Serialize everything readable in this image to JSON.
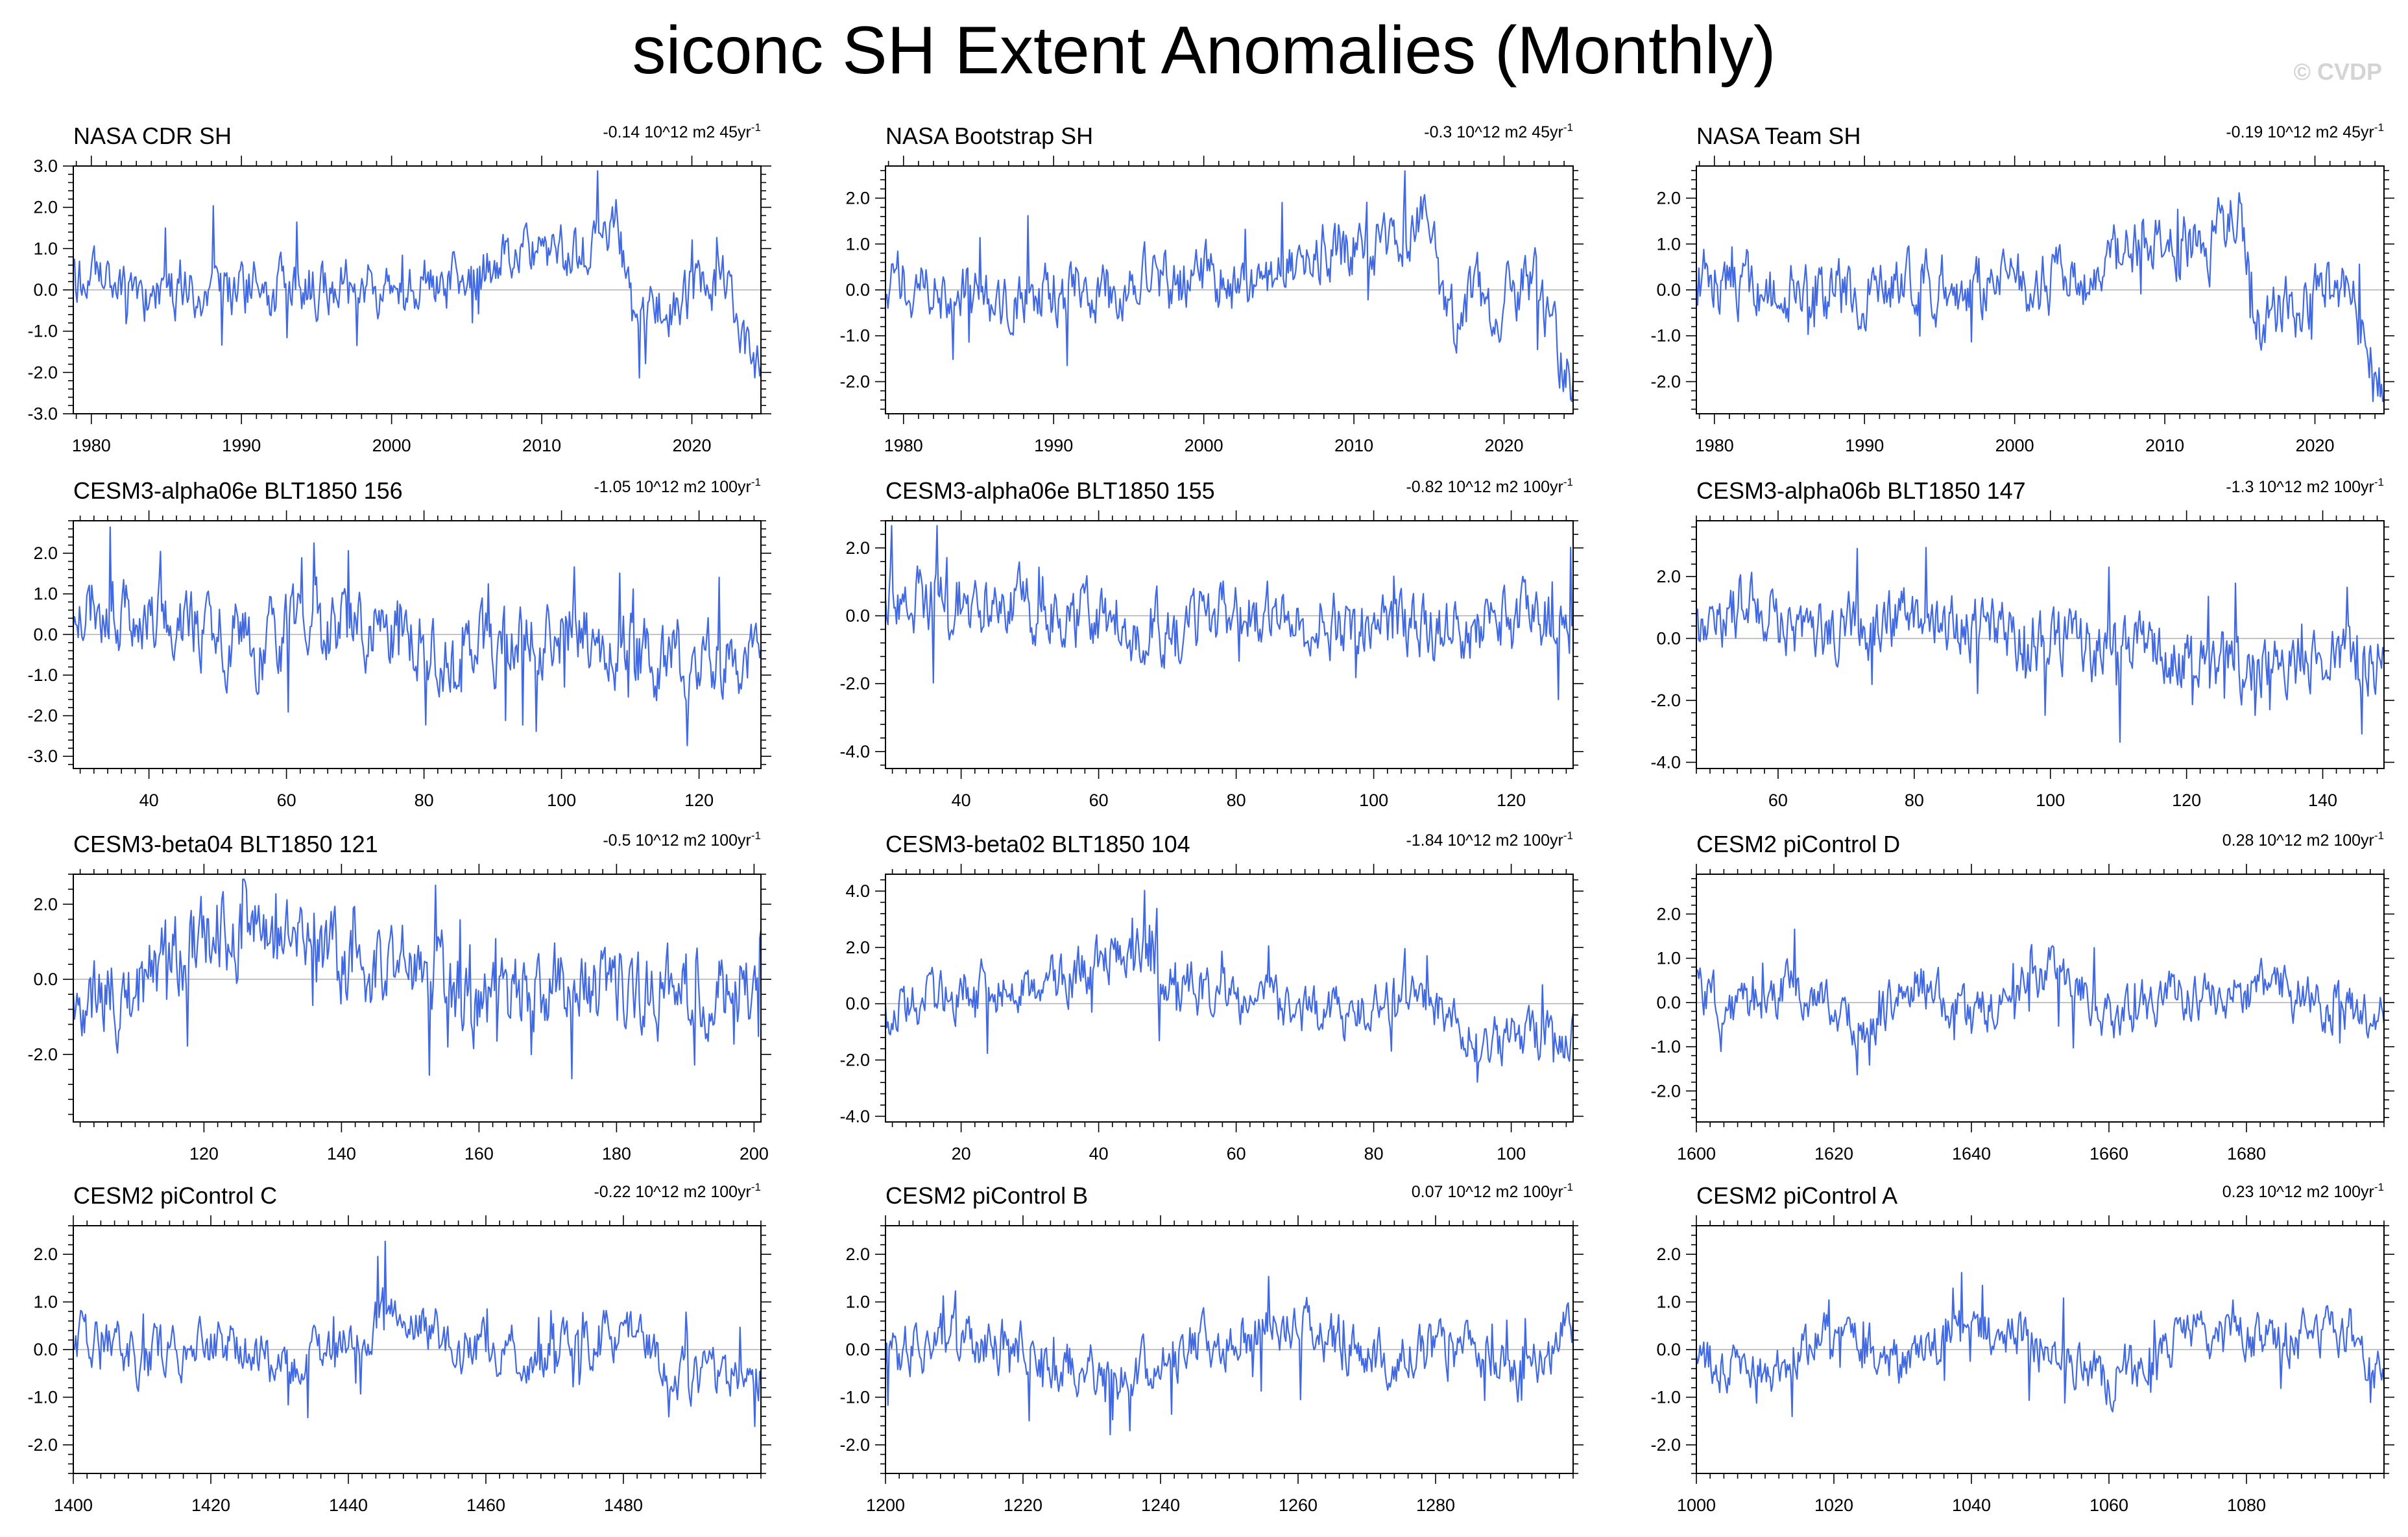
{
  "title": "siconc SH Extent Anomalies (Monthly)",
  "watermark": "© CVDP",
  "colors": {
    "line": "#4169e1",
    "zero_line": "#b0b0b0",
    "frame": "#000000"
  },
  "chart_data": [
    {
      "type": "line",
      "title": "NASA CDR SH",
      "trend_value": "-0.14",
      "trend_units": "10^12 m2 45yr",
      "trend_sup": "-1",
      "xlim": [
        1978.8,
        2024.6
      ],
      "xticks": [
        1980,
        1990,
        2000,
        2010,
        2020
      ],
      "ylim": [
        -3,
        3
      ],
      "yticks": [
        -3,
        -2,
        -1,
        0,
        1,
        2,
        3
      ],
      "amplitude": 0.55,
      "seed": 11,
      "anchors": [
        [
          1978.8,
          0.1
        ],
        [
          1985,
          -0.1
        ],
        [
          1995,
          0.1
        ],
        [
          2005,
          0.2
        ],
        [
          2008,
          0.9
        ],
        [
          2013,
          0.9
        ],
        [
          2015,
          1.8
        ],
        [
          2016,
          -0.7
        ],
        [
          2019,
          -0.3
        ],
        [
          2022,
          0.2
        ],
        [
          2023.5,
          -1.2
        ],
        [
          2024.6,
          -2.2
        ]
      ]
    },
    {
      "type": "line",
      "title": "NASA Bootstrap SH",
      "trend_value": "-0.3",
      "trend_units": "10^12 m2 45yr",
      "trend_sup": "-1",
      "xlim": [
        1978.8,
        2024.6
      ],
      "xticks": [
        1980,
        1990,
        2000,
        2010,
        2020
      ],
      "ylim": [
        -2.7,
        2.7
      ],
      "yticks": [
        -2,
        -1,
        0,
        1,
        2
      ],
      "amplitude": 0.55,
      "seed": 12,
      "anchors": [
        [
          1978.8,
          0.2
        ],
        [
          1985,
          -0.1
        ],
        [
          1995,
          0.1
        ],
        [
          2005,
          0.2
        ],
        [
          2008,
          0.9
        ],
        [
          2013,
          1.0
        ],
        [
          2015,
          1.8
        ],
        [
          2016,
          -0.7
        ],
        [
          2019,
          -0.3
        ],
        [
          2022,
          0.2
        ],
        [
          2023.5,
          -1.2
        ],
        [
          2024.6,
          -2.2
        ]
      ]
    },
    {
      "type": "line",
      "title": "NASA Team SH",
      "trend_value": "-0.19",
      "trend_units": "10^12 m2 45yr",
      "trend_sup": "-1",
      "xlim": [
        1978.8,
        2024.6
      ],
      "xticks": [
        1980,
        1990,
        2000,
        2010,
        2020
      ],
      "ylim": [
        -2.7,
        2.7
      ],
      "yticks": [
        -2,
        -1,
        0,
        1,
        2
      ],
      "amplitude": 0.55,
      "seed": 13,
      "anchors": [
        [
          1978.8,
          0.3
        ],
        [
          1985,
          -0.1
        ],
        [
          1995,
          0.1
        ],
        [
          2005,
          0.2
        ],
        [
          2008,
          1.0
        ],
        [
          2013,
          1.0
        ],
        [
          2015,
          1.8
        ],
        [
          2016,
          -0.7
        ],
        [
          2019,
          -0.4
        ],
        [
          2022,
          0.2
        ],
        [
          2023.5,
          -1.2
        ],
        [
          2024.6,
          -2.2
        ]
      ]
    },
    {
      "type": "line",
      "title": "CESM3-alpha06e BLT1850 156",
      "trend_value": "-1.05",
      "trend_units": "10^12 m2 100yr",
      "trend_sup": "-1",
      "xlim": [
        29,
        129
      ],
      "xticks": [
        40,
        60,
        80,
        100,
        120
      ],
      "ylim": [
        -3.3,
        2.8
      ],
      "yticks": [
        -3,
        -2,
        -1,
        0,
        1,
        2
      ],
      "amplitude": 0.75,
      "seed": 21,
      "anchors": [
        [
          29,
          0.8
        ],
        [
          40,
          0.5
        ],
        [
          55,
          -0.3
        ],
        [
          70,
          0.2
        ],
        [
          85,
          -0.5
        ],
        [
          100,
          0.2
        ],
        [
          115,
          -0.6
        ],
        [
          129,
          -0.4
        ]
      ]
    },
    {
      "type": "line",
      "title": "CESM3-alpha06e BLT1850 155",
      "trend_value": "-0.82",
      "trend_units": "10^12 m2 100yr",
      "trend_sup": "-1",
      "xlim": [
        29,
        129
      ],
      "xticks": [
        40,
        60,
        80,
        100,
        120
      ],
      "ylim": [
        -4.5,
        2.8
      ],
      "yticks": [
        -4,
        -2,
        0,
        2
      ],
      "amplitude": 0.8,
      "seed": 22,
      "anchors": [
        [
          29,
          0.8
        ],
        [
          45,
          0.3
        ],
        [
          65,
          -0.4
        ],
        [
          80,
          0.0
        ],
        [
          100,
          -0.3
        ],
        [
          115,
          -0.5
        ],
        [
          129,
          0.1
        ]
      ]
    },
    {
      "type": "line",
      "title": "CESM3-alpha06b BLT1850 147",
      "trend_value": "-1.3",
      "trend_units": "10^12 m2 100yr",
      "trend_sup": "-1",
      "xlim": [
        48,
        149
      ],
      "xticks": [
        60,
        80,
        100,
        120,
        140
      ],
      "ylim": [
        -4.2,
        3.8
      ],
      "yticks": [
        -4,
        -2,
        0,
        2
      ],
      "amplitude": 0.85,
      "seed": 23,
      "anchors": [
        [
          48,
          0.5
        ],
        [
          55,
          1.2
        ],
        [
          65,
          0.3
        ],
        [
          80,
          0.5
        ],
        [
          95,
          0.0
        ],
        [
          110,
          -0.4
        ],
        [
          125,
          -0.8
        ],
        [
          149,
          -0.7
        ]
      ]
    },
    {
      "type": "line",
      "title": "CESM3-beta04 BLT1850 121",
      "trend_value": "-0.5",
      "trend_units": "10^12 m2 100yr",
      "trend_sup": "-1",
      "xlim": [
        101,
        201
      ],
      "xticks": [
        120,
        140,
        160,
        180,
        200
      ],
      "ylim": [
        -3.8,
        2.8
      ],
      "yticks": [
        -2,
        0,
        2
      ],
      "amplitude": 0.9,
      "seed": 31,
      "anchors": [
        [
          101,
          -0.3
        ],
        [
          110,
          -0.3
        ],
        [
          120,
          1.2
        ],
        [
          130,
          1.2
        ],
        [
          140,
          0.3
        ],
        [
          150,
          0.6
        ],
        [
          160,
          -0.8
        ],
        [
          170,
          0.0
        ],
        [
          185,
          -0.5
        ],
        [
          201,
          0.0
        ]
      ]
    },
    {
      "type": "line",
      "title": "CESM3-beta02 BLT1850 104",
      "trend_value": "-1.84",
      "trend_units": "10^12 m2 100yr",
      "trend_sup": "-1",
      "xlim": [
        9,
        109
      ],
      "xticks": [
        20,
        40,
        60,
        80,
        100
      ],
      "ylim": [
        -4.2,
        4.6
      ],
      "yticks": [
        -4,
        -2,
        0,
        2,
        4
      ],
      "amplitude": 0.75,
      "seed": 32,
      "anchors": [
        [
          9,
          -0.3
        ],
        [
          20,
          0.5
        ],
        [
          35,
          0.8
        ],
        [
          44,
          2.0
        ],
        [
          50,
          1.0
        ],
        [
          60,
          0.0
        ],
        [
          75,
          -0.5
        ],
        [
          88,
          0.1
        ],
        [
          97,
          -1.5
        ],
        [
          102,
          -1.0
        ],
        [
          109,
          -1.2
        ]
      ]
    },
    {
      "type": "line",
      "title": "CESM2 piControl D",
      "trend_value": "0.28",
      "trend_units": "10^12 m2 100yr",
      "trend_sup": "-1",
      "xlim": [
        1600,
        1700
      ],
      "xticks": [
        1600,
        1620,
        1640,
        1660,
        1680
      ],
      "ylim": [
        -2.7,
        2.9
      ],
      "yticks": [
        -2,
        -1,
        0,
        1,
        2
      ],
      "amplitude": 0.45,
      "seed": 41,
      "anchors": [
        [
          1600,
          0.4
        ],
        [
          1605,
          -0.3
        ],
        [
          1615,
          0.4
        ],
        [
          1625,
          -0.5
        ],
        [
          1632,
          0.5
        ],
        [
          1640,
          -0.4
        ],
        [
          1652,
          0.9
        ],
        [
          1660,
          -0.3
        ],
        [
          1670,
          0.1
        ],
        [
          1685,
          0.3
        ],
        [
          1700,
          -0.4
        ]
      ]
    },
    {
      "type": "line",
      "title": "CESM2 piControl C",
      "trend_value": "-0.22",
      "trend_units": "10^12 m2 100yr",
      "trend_sup": "-1",
      "xlim": [
        1400,
        1500
      ],
      "xticks": [
        1400,
        1420,
        1440,
        1460,
        1480
      ],
      "ylim": [
        -2.6,
        2.6
      ],
      "yticks": [
        -2,
        -1,
        0,
        1,
        2
      ],
      "amplitude": 0.42,
      "seed": 51,
      "anchors": [
        [
          1400,
          0.3
        ],
        [
          1410,
          -0.2
        ],
        [
          1420,
          0.2
        ],
        [
          1430,
          -0.3
        ],
        [
          1440,
          0.1
        ],
        [
          1447,
          0.9
        ],
        [
          1455,
          0.1
        ],
        [
          1470,
          -0.1
        ],
        [
          1481,
          0.5
        ],
        [
          1487,
          -0.6
        ],
        [
          1500,
          -0.5
        ]
      ]
    },
    {
      "type": "line",
      "title": "CESM2 piControl B",
      "trend_value": "0.07",
      "trend_units": "10^12 m2 100yr",
      "trend_sup": "-1",
      "xlim": [
        1200,
        1300
      ],
      "xticks": [
        1200,
        1220,
        1240,
        1260,
        1280
      ],
      "ylim": [
        -2.6,
        2.6
      ],
      "yticks": [
        -2,
        -1,
        0,
        1,
        2
      ],
      "amplitude": 0.45,
      "seed": 52,
      "anchors": [
        [
          1200,
          -0.2
        ],
        [
          1210,
          0.3
        ],
        [
          1225,
          -0.2
        ],
        [
          1235,
          -0.6
        ],
        [
          1245,
          0.1
        ],
        [
          1260,
          0.6
        ],
        [
          1270,
          -0.1
        ],
        [
          1285,
          0.0
        ],
        [
          1292,
          -0.6
        ],
        [
          1300,
          0.6
        ]
      ]
    },
    {
      "type": "line",
      "title": "CESM2 piControl A",
      "trend_value": "0.23",
      "trend_units": "10^12 m2 100yr",
      "trend_sup": "-1",
      "xlim": [
        1000,
        1100
      ],
      "xticks": [
        1000,
        1020,
        1040,
        1060,
        1080
      ],
      "ylim": [
        -2.6,
        2.6
      ],
      "yticks": [
        -2,
        -1,
        0,
        1,
        2
      ],
      "amplitude": 0.42,
      "seed": 53,
      "anchors": [
        [
          1000,
          -0.2
        ],
        [
          1010,
          -0.4
        ],
        [
          1020,
          0.3
        ],
        [
          1030,
          -0.2
        ],
        [
          1042,
          0.5
        ],
        [
          1055,
          -0.3
        ],
        [
          1060,
          -0.6
        ],
        [
          1070,
          0.3
        ],
        [
          1085,
          0.2
        ],
        [
          1095,
          0.4
        ],
        [
          1100,
          -0.8
        ]
      ]
    }
  ]
}
